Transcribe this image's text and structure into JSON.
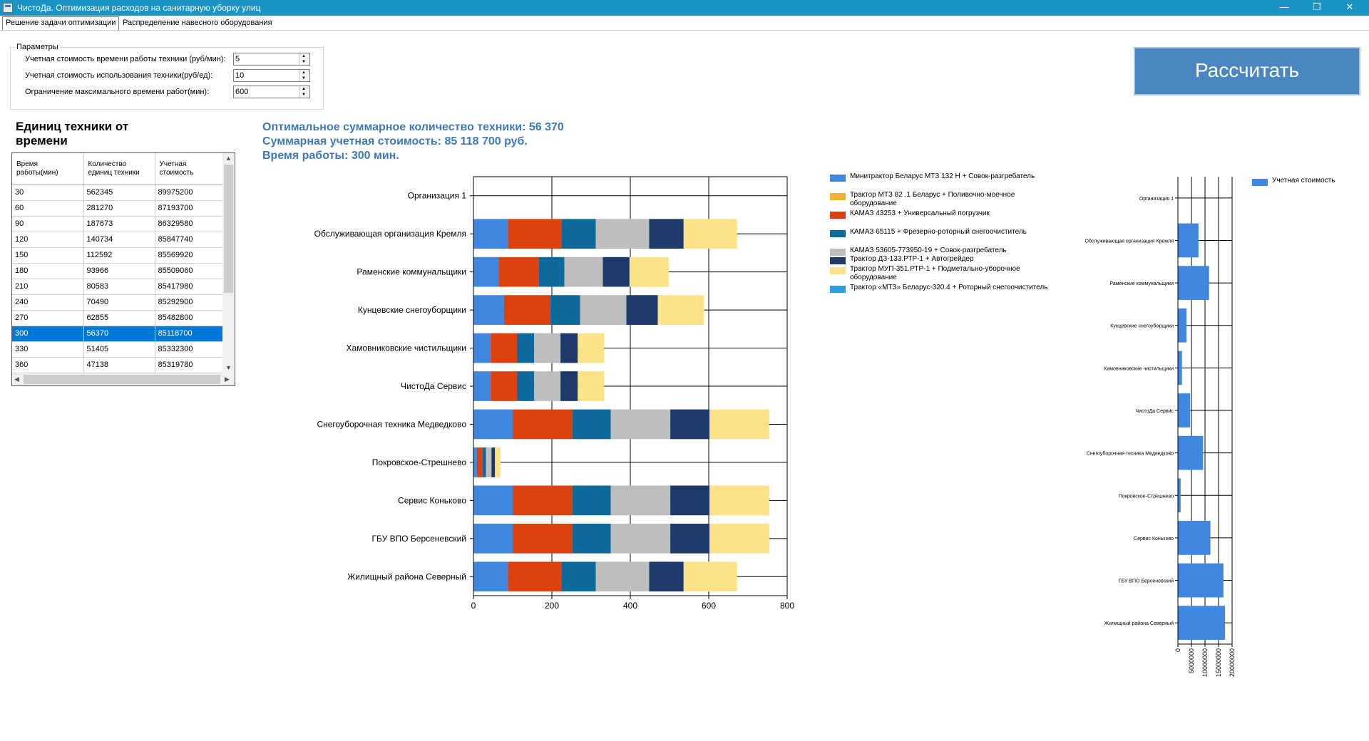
{
  "window": {
    "title": "ЧистоДа. Оптимизация расходов на санитарную уборку улиц",
    "min_icon": "minimize-icon",
    "max_icon": "maximize-icon",
    "close_icon": "close-icon"
  },
  "tabs": [
    "Решение задачи оптимизации",
    "Распределение навесного оборудования"
  ],
  "params": {
    "legend": "Параметры",
    "items": [
      {
        "label": "Учетная стоимость времени работы техники (руб/мин):",
        "value": "5"
      },
      {
        "label": "Учетная стоимость использования техники(руб/ед):",
        "value": "10"
      },
      {
        "label": "Ограничение максимального времени работ(мин):",
        "value": "600"
      }
    ]
  },
  "calculate_label": "Рассчитать",
  "grid_title": "Единиц техники от времени",
  "grid": {
    "headers": [
      "Время работы(мин)",
      "Количество единиц техники",
      "Учетная стоимость"
    ],
    "rows": [
      [
        "30",
        "562345",
        "89975200"
      ],
      [
        "60",
        "281270",
        "87193700"
      ],
      [
        "90",
        "187673",
        "86329580"
      ],
      [
        "120",
        "140734",
        "85847740"
      ],
      [
        "150",
        "112592",
        "85569920"
      ],
      [
        "180",
        "93966",
        "85509060"
      ],
      [
        "210",
        "80583",
        "85417980"
      ],
      [
        "240",
        "70490",
        "85292900"
      ],
      [
        "270",
        "62855",
        "85482800"
      ],
      [
        "300",
        "56370",
        "85118700"
      ],
      [
        "330",
        "51405",
        "85332300"
      ],
      [
        "360",
        "47138",
        "85319780"
      ]
    ],
    "selected_index": 9
  },
  "summary": {
    "count": "Оптимальное суммарное количество техники: 56 370",
    "cost": "Суммарная учетная стоимость: 85 118 700 руб.",
    "time": "Время работы: 300 мин."
  },
  "chart_data": [
    {
      "type": "bar",
      "orientation": "horizontal",
      "stacked": true,
      "categories": [
        "Организация 1",
        "Обслуживающая организация Кремля",
        "Раменские коммунальщики",
        "Кунцевские снегоуборщики",
        "Хамовниковские чистильщики",
        "ЧистоДа Сервис",
        "Снегоуборочная техника Медведково",
        "Покровское-Стрешнево",
        "Сервис Коньково",
        "ГБУ ВПО Берсеневский",
        "Жилищный района Северный"
      ],
      "series": [
        {
          "name": "Минитрактор Беларус МТЗ 132 Н + Совок-разгребатель",
          "color": "#3f87e0",
          "values": [
            0,
            88,
            64,
            78,
            44,
            44,
            100,
            9,
            100,
            100,
            88
          ]
        },
        {
          "name": "Трактор МТЗ 82 .1 Беларус + Поливочно-моечное оборудование",
          "color": "#f2b134",
          "values": [
            0,
            0,
            0,
            0,
            0,
            0,
            0,
            0,
            0,
            0,
            0
          ]
        },
        {
          "name": "КАМАЗ 43253 + Универсальный погрузчик",
          "color": "#dc420f",
          "values": [
            0,
            136,
            102,
            118,
            67,
            67,
            152,
            14,
            152,
            152,
            136
          ]
        },
        {
          "name": "КАМАЗ 65115 + Фрезерно-роторный снегоочиститель",
          "color": "#0d6a9a",
          "values": [
            0,
            88,
            66,
            76,
            44,
            44,
            98,
            9,
            98,
            98,
            88
          ]
        },
        {
          "name": "КАМАЗ 53605-773950-19 + Совок-разгребатель",
          "color": "#bebebe",
          "values": [
            0,
            136,
            98,
            118,
            67,
            67,
            152,
            14,
            152,
            152,
            136
          ]
        },
        {
          "name": "Трактор ДЗ-133.РТР-1 + Автогрейдер",
          "color": "#1e3a6a",
          "values": [
            0,
            88,
            68,
            80,
            44,
            44,
            100,
            9,
            100,
            100,
            88
          ]
        },
        {
          "name": "Трактор МУП-351.РТР-1 + Подметально-уборочное оборудование",
          "color": "#fde289",
          "values": [
            0,
            136,
            100,
            118,
            67,
            67,
            152,
            14,
            152,
            152,
            136
          ]
        },
        {
          "name": "Трактор «МТЗ» Беларус-320.4 + Роторный снегоочиститель",
          "color": "#2d9ee0",
          "values": [
            0,
            0,
            0,
            0,
            0,
            0,
            0,
            0,
            0,
            0,
            0
          ]
        }
      ],
      "xlim": [
        0,
        800
      ],
      "xticks": [
        "0",
        "200",
        "400",
        "600",
        "800"
      ],
      "grid": true,
      "legend_position": "right"
    },
    {
      "type": "bar",
      "orientation": "horizontal",
      "categories": [
        "Организация 1",
        "Обслуживающая организация Кремля",
        "Раменские коммунальщики",
        "Кунцевские снегоуборщики",
        "Хамовниковские чистильщики",
        "ЧистоДа Сервис",
        "Снегоуборочная техника Медведково",
        "Покровское-Стрешнево",
        "Сервис Коньково",
        "ГБУ ВПО Берсеневский",
        "Жилищный района Северный"
      ],
      "series": [
        {
          "name": "Учетная стоимость",
          "color": "#3f87e0",
          "values": [
            0,
            7600000,
            11500000,
            3200000,
            1500000,
            4500000,
            9300000,
            1000000,
            12000000,
            16800000,
            17400000
          ]
        }
      ],
      "xlim": [
        0,
        20000000
      ],
      "xticks": [
        "0",
        "5000000",
        "10000000",
        "15000000",
        "20000000"
      ],
      "grid": true,
      "legend_position": "top-right"
    }
  ]
}
